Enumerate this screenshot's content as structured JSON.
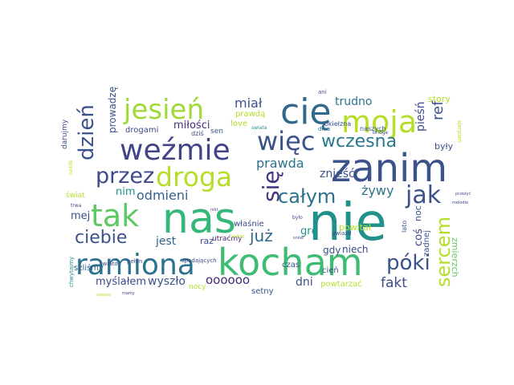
{
  "wordcloud": {
    "words": [
      {
        "text": "nie",
        "color": "#21918c"
      },
      {
        "text": "nas",
        "color": "#35b779"
      },
      {
        "text": "kocham",
        "color": "#3fbc73"
      },
      {
        "text": "zanim",
        "color": "#3b528b"
      },
      {
        "text": "ramiona",
        "color": "#2c728e"
      },
      {
        "text": "weźmie",
        "color": "#414487"
      },
      {
        "text": "droga",
        "color": "#b5de2b"
      },
      {
        "text": "moja",
        "color": "#b5de2b"
      },
      {
        "text": "jesień",
        "color": "#9fda3a"
      },
      {
        "text": "cię",
        "color": "#31688e"
      },
      {
        "text": "tak",
        "color": "#5ec962"
      },
      {
        "text": "więc",
        "color": "#3b528b"
      },
      {
        "text": "przez",
        "color": "#3e4a89"
      },
      {
        "text": "jak",
        "color": "#3b528b"
      },
      {
        "text": "póki",
        "color": "#3b528b"
      },
      {
        "text": "ciebie",
        "color": "#3b528b"
      },
      {
        "text": "całym",
        "color": "#2c728e"
      },
      {
        "text": "dzień",
        "color": "#3b528b"
      },
      {
        "text": "się",
        "color": "#46327e"
      },
      {
        "text": "sercem",
        "color": "#b5de2b"
      },
      {
        "text": "wczesna",
        "color": "#2a788e"
      },
      {
        "text": "odmieni",
        "color": "#33638d"
      },
      {
        "text": "już",
        "color": "#31688e"
      },
      {
        "text": "fakt",
        "color": "#3e4a89"
      },
      {
        "text": "oooooo",
        "color": "#482878"
      },
      {
        "text": "wyszło",
        "color": "#3b528b"
      },
      {
        "text": "żywy",
        "color": "#2c728e"
      },
      {
        "text": "miał",
        "color": "#3b528b"
      },
      {
        "text": "trudno",
        "color": "#2c728e"
      },
      {
        "text": "ref",
        "color": "#3b528b"
      },
      {
        "text": "pieśń",
        "color": "#3e4a89"
      },
      {
        "text": "prawda",
        "color": "#2c728e"
      },
      {
        "text": "znieść",
        "color": "#3b528b"
      },
      {
        "text": "miłości",
        "color": "#46327e"
      },
      {
        "text": "dni",
        "color": "#3b528b"
      },
      {
        "text": "myślałem",
        "color": "#3e4a89"
      },
      {
        "text": "jest",
        "color": "#33638d"
      },
      {
        "text": "nim",
        "color": "#21918c"
      },
      {
        "text": "grę",
        "color": "#21918c"
      },
      {
        "text": "mej",
        "color": "#3b528b"
      },
      {
        "text": "gdy",
        "color": "#3b528b"
      },
      {
        "text": "coś",
        "color": "#3e4a89"
      },
      {
        "text": "noc",
        "color": "#3b528b"
      },
      {
        "text": "zmierzch",
        "color": "#5ec962"
      },
      {
        "text": "były",
        "color": "#3b528b"
      },
      {
        "text": "story",
        "color": "#b5de2b"
      },
      {
        "text": "prowadzę",
        "color": "#3b528b"
      },
      {
        "text": "drogami",
        "color": "#3e4a89"
      },
      {
        "text": "szliśmy",
        "color": "#33638d"
      },
      {
        "text": "powitał",
        "color": "#b5de2b"
      },
      {
        "text": "niech",
        "color": "#3e4a89"
      },
      {
        "text": "cień",
        "color": "#3b528b"
      },
      {
        "text": "setny",
        "color": "#3b528b"
      },
      {
        "text": "powtarzać",
        "color": "#b5de2b"
      },
      {
        "text": "właśnie",
        "color": "#3e4a89"
      },
      {
        "text": "czas",
        "color": "#3b528b"
      },
      {
        "text": "raz",
        "color": "#3e4a89"
      },
      {
        "text": "utraćmy",
        "color": "#482878"
      },
      {
        "text": "nocy",
        "color": "#b5de2b"
      },
      {
        "text": "prawdą",
        "color": "#b5de2b"
      },
      {
        "text": "love",
        "color": "#b5de2b"
      },
      {
        "text": "sen",
        "color": "#3b528b"
      },
      {
        "text": "dziś",
        "color": "#3e4a89"
      },
      {
        "text": "okiełzna",
        "color": "#3e4a89"
      },
      {
        "text": "dnia",
        "color": "#31688e"
      },
      {
        "text": "naszych",
        "color": "#3b528b"
      },
      {
        "text": "darujmy",
        "color": "#3b528b"
      },
      {
        "text": "świat",
        "color": "#b5de2b"
      },
      {
        "text": "świato",
        "color": "#3e4a89"
      },
      {
        "text": "pełen",
        "color": "#3e4a89"
      },
      {
        "text": "spadających",
        "color": "#3e4a89"
      },
      {
        "text": "gwiazd",
        "color": "#3e4a89"
      },
      {
        "text": "zadnej",
        "color": "#3b528b"
      },
      {
        "text": "lato",
        "color": "#3b528b"
      },
      {
        "text": "chwytajmy",
        "color": "#21918c"
      },
      {
        "text": "sierpień",
        "color": "#b5de2b"
      },
      {
        "text": "ani",
        "color": "#3e4a89"
      },
      {
        "text": "bridge",
        "color": "#3b528b"
      },
      {
        "text": "trwa",
        "color": "#3e4a89"
      },
      {
        "text": "ozdób",
        "color": "#b5de2b"
      },
      {
        "text": "zawsze",
        "color": "#b5de2b"
      },
      {
        "text": "swiata",
        "color": "#21918c"
      },
      {
        "text": "było",
        "color": "#3e4a89"
      },
      {
        "text": "melodie",
        "color": "#3e4a89"
      },
      {
        "text": "przeżyć",
        "color": "#3e4a89"
      },
      {
        "text": "żadnej",
        "color": "#b5de2b"
      },
      {
        "text": "nikt",
        "color": "#3e4a89"
      },
      {
        "text": "mamy",
        "color": "#3e4a89"
      },
      {
        "text": "snów",
        "color": "#3e4a89"
      }
    ]
  }
}
